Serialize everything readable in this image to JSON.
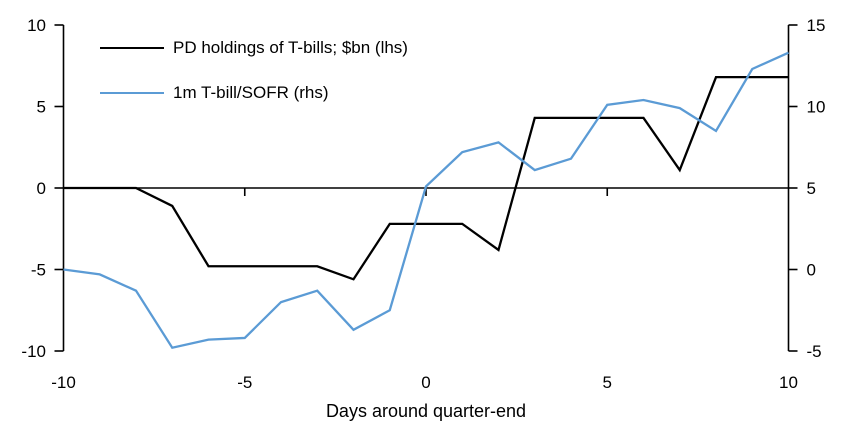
{
  "chart_data": {
    "type": "line",
    "x": [
      -10,
      -9,
      -8,
      -7,
      -6,
      -5,
      -4,
      -3,
      -2,
      -1,
      0,
      1,
      2,
      3,
      4,
      5,
      6,
      7,
      8,
      9,
      10
    ],
    "series": [
      {
        "name": "PD holdings of T-bills; $bn (lhs)",
        "axis": "left",
        "color": "#000000",
        "values": [
          0,
          0,
          0,
          -1.1,
          -4.8,
          -4.8,
          -4.8,
          -4.8,
          -5.6,
          -2.2,
          -2.2,
          -2.2,
          -3.8,
          4.3,
          4.3,
          4.3,
          4.3,
          1.1,
          6.8,
          6.8,
          6.8
        ]
      },
      {
        "name": "1m T-bill/SOFR (rhs)",
        "axis": "right",
        "color": "#5B9BD5",
        "values": [
          0,
          -0.3,
          -1.3,
          -4.8,
          -4.3,
          -4.2,
          -2.0,
          -1.3,
          -3.7,
          -2.5,
          5.1,
          7.2,
          7.8,
          6.1,
          6.8,
          10.1,
          10.4,
          9.9,
          8.5,
          12.3,
          13.3
        ]
      }
    ],
    "xlabel": "Days around quarter-end",
    "x_axis": {
      "min": -10,
      "max": 10,
      "tick_labels": [
        -10,
        -5,
        0,
        5,
        10
      ],
      "tick_marks": [
        -5,
        0,
        5
      ]
    },
    "left_axis": {
      "min": -10,
      "max": 10,
      "ticks": [
        10,
        5,
        0,
        -5,
        -10
      ]
    },
    "right_axis": {
      "min": -5,
      "max": 15,
      "ticks": [
        15,
        10,
        5,
        0,
        -5
      ]
    },
    "grid": false,
    "legend_position": "top-left-inside",
    "background": "#ffffff",
    "axis_color": "#000000"
  }
}
